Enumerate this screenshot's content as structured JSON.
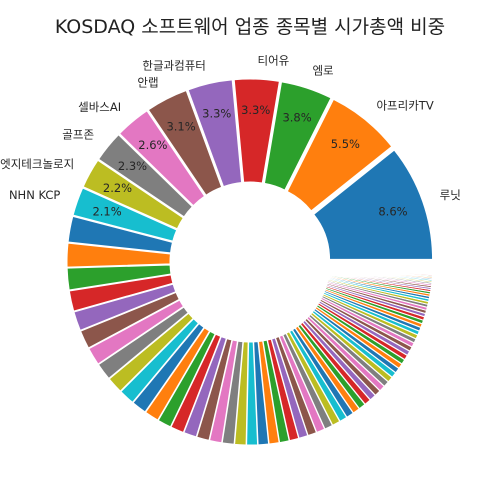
{
  "chart_data": {
    "type": "pie",
    "title": "KOSDAQ 소프트웨어 업종 종목별 시가총액 비중",
    "style": "exploded donut",
    "start_angle_deg": 0,
    "direction": "counterclockwise",
    "labeled_slices": [
      {
        "label": "루닛",
        "value": 8.6,
        "display": "8.6%"
      },
      {
        "label": "아프리카TV",
        "value": 5.5,
        "display": "5.5%"
      },
      {
        "label": "엠로",
        "value": 3.8,
        "display": "3.8%"
      },
      {
        "label": "티어유",
        "value": 3.3,
        "display": "3.3%"
      },
      {
        "label": "한글과컴퓨터",
        "value": 3.3,
        "display": "3.3%"
      },
      {
        "label": "안랩",
        "value": 3.1,
        "display": "3.1%"
      },
      {
        "label": "셀바스AI",
        "value": 2.6,
        "display": "2.6%"
      },
      {
        "label": "골프존",
        "value": 2.3,
        "display": "2.3%"
      },
      {
        "label": "오픈엣지테크놀로지",
        "value": 2.2,
        "display": "2.2%"
      },
      {
        "label": "NHN KCP",
        "value": 2.1,
        "display": "2.1%"
      }
    ],
    "unlabeled_slice_values": [
      1.9,
      1.75,
      1.6,
      1.5,
      1.42,
      1.35,
      1.3,
      1.25,
      1.2,
      1.15,
      1.1,
      1.05,
      1.0,
      0.98,
      0.95,
      0.92,
      0.9,
      0.87,
      0.84,
      0.8,
      0.77,
      0.74,
      0.71,
      0.68,
      0.66,
      0.64,
      0.62,
      0.6,
      0.58,
      0.56,
      0.54,
      0.52,
      0.5,
      0.48,
      0.47,
      0.45,
      0.44,
      0.42,
      0.41,
      0.4,
      0.38,
      0.37,
      0.36,
      0.35,
      0.34,
      0.33,
      0.32,
      0.31,
      0.3,
      0.29,
      0.28,
      0.27,
      0.26,
      0.25,
      0.24,
      0.23,
      0.22,
      0.21,
      0.2,
      0.19,
      0.18,
      0.17,
      0.16,
      0.15,
      0.14,
      0.13,
      0.12,
      0.11,
      0.1,
      0.1,
      0.09,
      0.09,
      0.08,
      0.08,
      0.07,
      0.07,
      0.06,
      0.06,
      0.05,
      0.05,
      0.05,
      0.04,
      0.04,
      0.04,
      0.03,
      0.03,
      0.03,
      0.03,
      0.02,
      0.02,
      0.02,
      0.02,
      0.02,
      0.02,
      0.02,
      0.02,
      0.02,
      0.02,
      0.02,
      0.02
    ],
    "palette": [
      "#1f77b4",
      "#ff7f0e",
      "#2ca02c",
      "#d62728",
      "#9467bd",
      "#8c564b",
      "#e377c2",
      "#7f7f7f",
      "#bcbd22",
      "#17becf"
    ]
  }
}
